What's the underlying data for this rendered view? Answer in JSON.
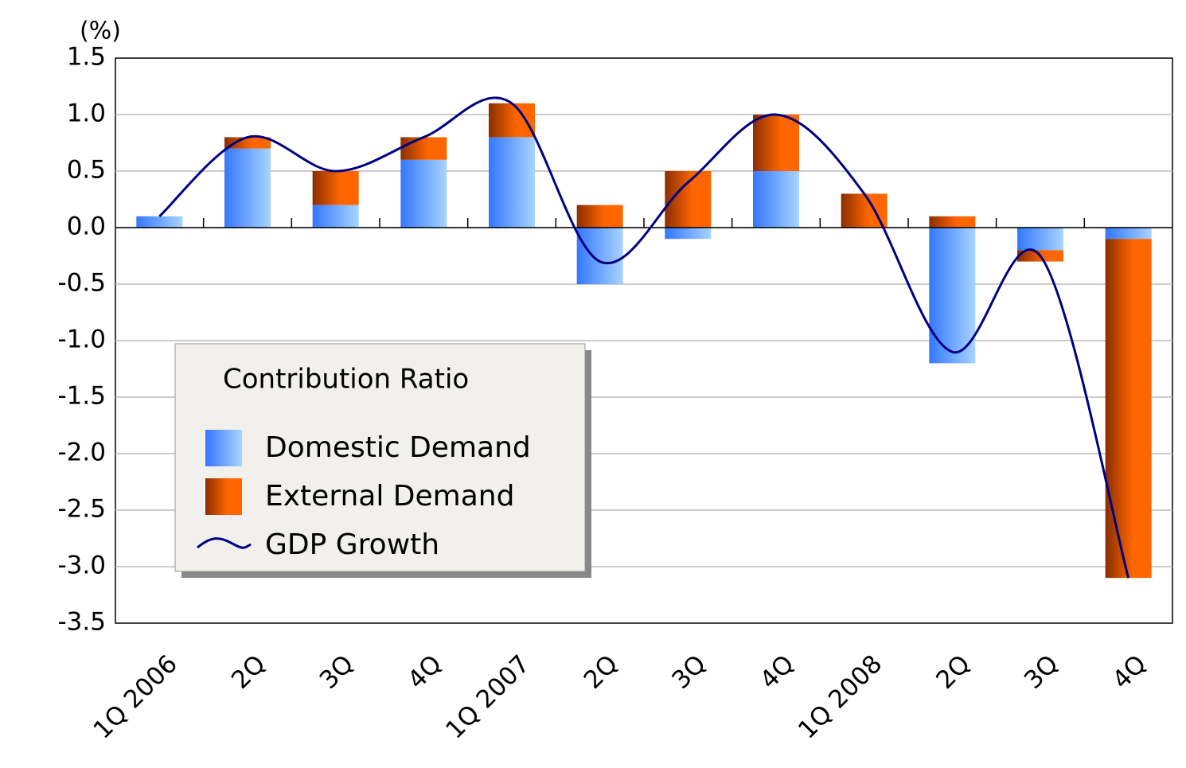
{
  "chart_data": {
    "type": "bar",
    "y_unit": "(%)",
    "categories": [
      "1Q 2006",
      "2Q",
      "3Q",
      "4Q",
      "1Q 2007",
      "2Q",
      "3Q",
      "4Q",
      "1Q 2008",
      "2Q",
      "3Q",
      "4Q"
    ],
    "series": [
      {
        "name": "Domestic Demand",
        "type": "bar",
        "color": "#3377ff",
        "values": [
          0.1,
          0.7,
          0.2,
          0.6,
          0.8,
          -0.5,
          -0.1,
          0.5,
          0,
          -1.2,
          -0.2,
          -0.1
        ]
      },
      {
        "name": "External Demand",
        "type": "bar",
        "color": "#ff6600",
        "values": [
          0,
          0.1,
          0.3,
          0.2,
          0.3,
          0.2,
          0.5,
          0.5,
          0.3,
          0.1,
          -0.1,
          -3.0
        ]
      },
      {
        "name": "GDP Growth",
        "type": "line",
        "color": "#000080",
        "values": [
          0.1,
          0.8,
          0.5,
          0.8,
          1.1,
          -0.3,
          0.4,
          1.0,
          0.3,
          -1.1,
          -0.25,
          -3.1
        ]
      }
    ],
    "legend_title": "Contribution Ratio",
    "stacked": true,
    "ylim": [
      -3.5,
      1.5
    ],
    "yticks": [
      -3.5,
      {
        "value": -3,
        "label": "-3.0"
      },
      -2.5,
      {
        "value": -2,
        "label": "-2.0"
      },
      -1.5,
      {
        "value": -1,
        "label": "-1.0"
      },
      -0.5,
      {
        "value": 0,
        "label": "0.0"
      },
      0.5,
      {
        "value": 1,
        "label": "1.0"
      },
      1.5
    ],
    "grid": true
  }
}
